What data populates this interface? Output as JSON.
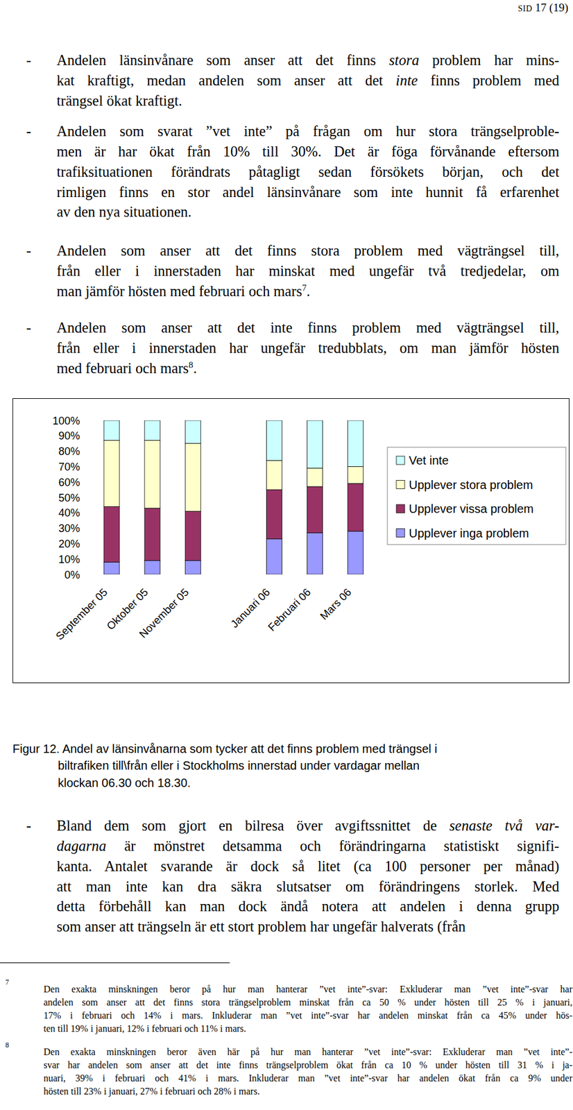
{
  "header": {
    "label": "SID",
    "page": "17 (19)"
  },
  "paragraphs_before": [
    {
      "marker": "-",
      "lines": [
        [
          {
            "text": "Andelen länsinvånare som anser att det finns "
          },
          {
            "text": "stora",
            "style": "italic"
          },
          {
            "text": " problem har mins-"
          }
        ],
        [
          {
            "text": "kat kraftigt, medan andelen som anser att det "
          },
          {
            "text": "inte",
            "style": "italic"
          },
          {
            "text": " finns problem med"
          }
        ],
        [
          {
            "text": "trängsel ökat kraftigt."
          }
        ]
      ]
    },
    {
      "marker": "-",
      "lines": [
        [
          {
            "text": "Andelen som svarat ”vet inte” på frågan om hur stora trängselproble-"
          }
        ],
        [
          {
            "text": "men är har ökat från 10% till 30%. Det är föga förvånande eftersom"
          }
        ],
        [
          {
            "text": "trafiksituationen förändrats påtagligt sedan försökets början, och det"
          }
        ],
        [
          {
            "text": "rimligen finns en stor andel länsinvånare som inte hunnit få erfarenhet"
          }
        ],
        [
          {
            "text": "av den nya situationen."
          }
        ]
      ]
    },
    {
      "marker": "-",
      "lines": [
        [
          {
            "text": "Andelen som anser att det finns stora problem med vägträngsel till,"
          }
        ],
        [
          {
            "text": "från eller i innerstaden har minskat med ungefär två tredjedelar, om"
          }
        ],
        [
          {
            "text": "man jämför hösten med februari och mars"
          },
          {
            "text": "7",
            "style": "sup"
          },
          {
            "text": "."
          }
        ]
      ]
    },
    {
      "marker": "-",
      "lines": [
        [
          {
            "text": "Andelen som anser att det inte finns problem med vägträngsel till,"
          }
        ],
        [
          {
            "text": "från eller i innerstaden har ungefär tredubblats, om man jämför hösten"
          }
        ],
        [
          {
            "text": "med februari och mars"
          },
          {
            "text": "8",
            "style": "sup"
          },
          {
            "text": "."
          }
        ]
      ]
    }
  ],
  "chart_data": {
    "type": "bar",
    "stacked": true,
    "categories": [
      "September 05",
      "Oktober 05",
      "November 05",
      null,
      "Januari 06",
      "Februari 06",
      "Mars 06"
    ],
    "series": [
      {
        "name": "Upplever inga problem",
        "color": "#9999ff",
        "values": [
          8,
          9,
          9,
          null,
          23,
          27,
          28
        ]
      },
      {
        "name": "Upplever vissa problem",
        "color": "#993366",
        "values": [
          36,
          34,
          32,
          null,
          32,
          30,
          31
        ]
      },
      {
        "name": "Upplever stora problem",
        "color": "#ffffcc",
        "values": [
          43,
          44,
          44,
          null,
          19,
          12,
          11
        ]
      },
      {
        "name": "Vet inte",
        "color": "#ccffff",
        "values": [
          13,
          13,
          15,
          null,
          26,
          31,
          30
        ]
      }
    ],
    "ylim": [
      0,
      100
    ],
    "yticks": [
      {
        "value": 0,
        "label": "0%"
      },
      {
        "value": 10,
        "label": "10%"
      },
      {
        "value": 20,
        "label": "20%"
      },
      {
        "value": 30,
        "label": "30%"
      },
      {
        "value": 40,
        "label": "40%"
      },
      {
        "value": 50,
        "label": "50%"
      },
      {
        "value": 60,
        "label": "60%"
      },
      {
        "value": 70,
        "label": "70%"
      },
      {
        "value": 80,
        "label": "80%"
      },
      {
        "value": 90,
        "label": "90%"
      },
      {
        "value": 100,
        "label": "100%"
      }
    ],
    "grid": false,
    "legend": "right"
  },
  "caption": [
    "Figur 12. Andel av länsinvånarna som tycker att det finns problem med trängsel i",
    "biltrafiken till\\från eller i Stockholms innerstad under vardagar mellan",
    "klockan 06.30 och 18.30."
  ],
  "paragraphs_after": [
    {
      "marker": "-",
      "lines": [
        [
          {
            "text": "Bland dem som gjort en bilresa över avgiftssnittet de "
          },
          {
            "text": "senaste två var-",
            "style": "italic"
          }
        ],
        [
          {
            "text": "dagarna",
            "style": "italic"
          },
          {
            "text": " är mönstret detsamma och förändringarna statistiskt signifi-"
          }
        ],
        [
          {
            "text": "kanta. Antalet svarande är dock så litet (ca 100 personer per månad)"
          }
        ],
        [
          {
            "text": "att man inte kan dra säkra slutsatser om förändringens storlek. Med"
          }
        ],
        [
          {
            "text": "detta förbehåll kan man dock ändå notera att andelen i denna grupp"
          }
        ],
        [
          {
            "text": "som anser att trängseln är ett stort problem har ungefär halverats (från"
          }
        ]
      ]
    }
  ],
  "footnotes": [
    {
      "number": "7",
      "lines": [
        "Den exakta minskningen beror på hur man hanterar ”vet inte”-svar: Exkluderar man ”vet inte”-svar har",
        "andelen som anser att det finns stora trängselproblem minskat från ca 50 % under hösten till 25 % i januari,",
        "17% i februari och 14% i mars. Inkluderar man ”vet inte”-svar har andelen minskat från ca 45% under hös-",
        "ten till 19% i januari, 12% i februari och 11% i mars."
      ]
    },
    {
      "number": "8",
      "lines": [
        "Den exakta minskningen beror även här på hur man hanterar ”vet inte”-svar: Exkluderar man ”vet inte”-",
        "svar har andelen som anser att det inte finns trängselproblem ökat från ca 10 % under hösten till 31 % i ja-",
        "nuari, 39% i februari och 41% i mars. Inkluderar man ”vet inte”-svar har andelen ökat från ca 9% under",
        "hösten till 23% i januari, 27% i februari och 28% i mars."
      ]
    }
  ]
}
